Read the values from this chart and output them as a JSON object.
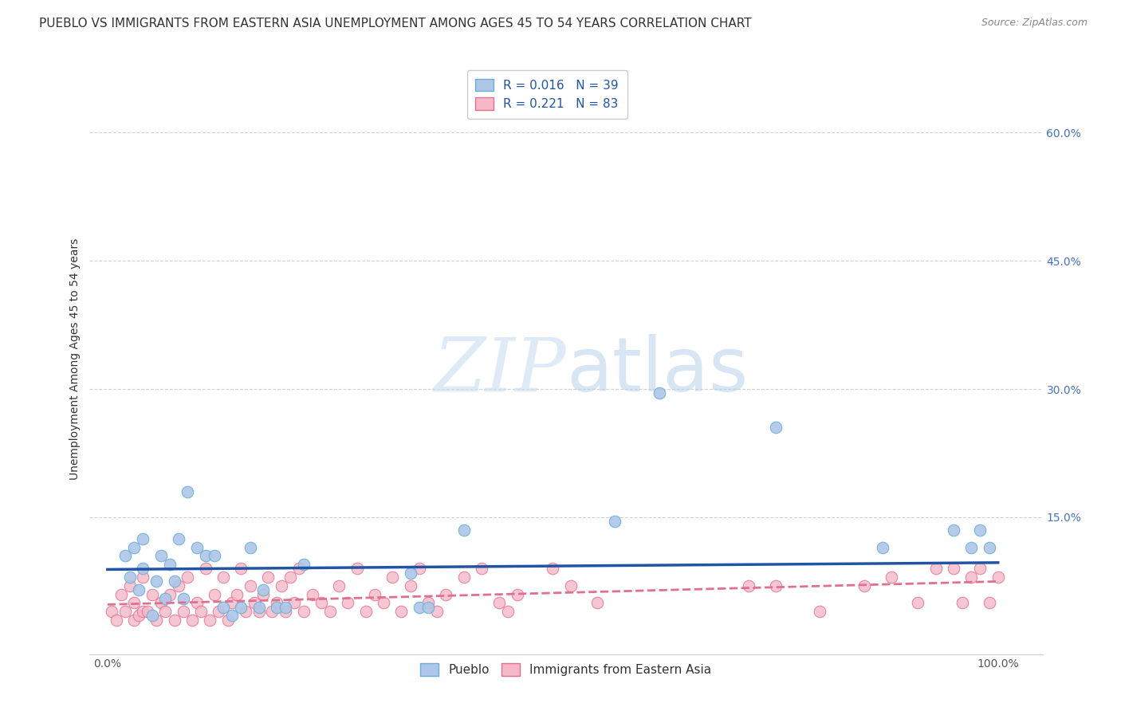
{
  "title": "PUEBLO VS IMMIGRANTS FROM EASTERN ASIA UNEMPLOYMENT AMONG AGES 45 TO 54 YEARS CORRELATION CHART",
  "source": "Source: ZipAtlas.com",
  "ylabel": "Unemployment Among Ages 45 to 54 years",
  "xlim": [
    -0.02,
    1.05
  ],
  "ylim": [
    -0.01,
    0.68
  ],
  "xticks": [
    0.0,
    1.0
  ],
  "xticklabels": [
    "0.0%",
    "100.0%"
  ],
  "ytick_positions": [
    0.15,
    0.3,
    0.45,
    0.6
  ],
  "yticklabels": [
    "15.0%",
    "30.0%",
    "45.0%",
    "60.0%"
  ],
  "pueblo_R": "0.016",
  "pueblo_N": "39",
  "eastern_asia_R": "0.221",
  "eastern_asia_N": "83",
  "pueblo_color": "#aec6e8",
  "pueblo_edge_color": "#6baed6",
  "eastern_asia_color": "#f4b8c8",
  "eastern_asia_edge_color": "#e07090",
  "pueblo_line_color": "#2155a3",
  "eastern_asia_line_color": "#e07090",
  "legend_text_color": "#2155a3",
  "background_color": "#ffffff",
  "grid_color": "#cccccc",
  "title_fontsize": 11,
  "axis_label_fontsize": 10,
  "tick_fontsize": 10,
  "legend_fontsize": 11,
  "pueblo_x": [
    0.02,
    0.025,
    0.03,
    0.035,
    0.04,
    0.04,
    0.05,
    0.055,
    0.06,
    0.065,
    0.07,
    0.075,
    0.08,
    0.085,
    0.09,
    0.1,
    0.11,
    0.12,
    0.13,
    0.14,
    0.15,
    0.16,
    0.17,
    0.175,
    0.19,
    0.2,
    0.22,
    0.34,
    0.35,
    0.36,
    0.4,
    0.57,
    0.62,
    0.75,
    0.87,
    0.95,
    0.97,
    0.98,
    0.99
  ],
  "pueblo_y": [
    0.105,
    0.08,
    0.115,
    0.065,
    0.09,
    0.125,
    0.035,
    0.075,
    0.105,
    0.055,
    0.095,
    0.075,
    0.125,
    0.055,
    0.18,
    0.115,
    0.105,
    0.105,
    0.045,
    0.035,
    0.045,
    0.115,
    0.045,
    0.065,
    0.045,
    0.045,
    0.095,
    0.085,
    0.045,
    0.045,
    0.135,
    0.145,
    0.295,
    0.255,
    0.115,
    0.135,
    0.115,
    0.135,
    0.115
  ],
  "eastern_asia_x": [
    0.005,
    0.01,
    0.015,
    0.02,
    0.025,
    0.03,
    0.03,
    0.035,
    0.04,
    0.04,
    0.045,
    0.05,
    0.055,
    0.06,
    0.065,
    0.07,
    0.075,
    0.08,
    0.085,
    0.09,
    0.095,
    0.1,
    0.105,
    0.11,
    0.115,
    0.12,
    0.125,
    0.13,
    0.135,
    0.14,
    0.145,
    0.15,
    0.155,
    0.16,
    0.165,
    0.17,
    0.175,
    0.18,
    0.185,
    0.19,
    0.195,
    0.2,
    0.205,
    0.21,
    0.215,
    0.22,
    0.23,
    0.24,
    0.25,
    0.26,
    0.27,
    0.28,
    0.29,
    0.3,
    0.31,
    0.32,
    0.33,
    0.34,
    0.35,
    0.36,
    0.37,
    0.38,
    0.4,
    0.42,
    0.44,
    0.45,
    0.46,
    0.5,
    0.52,
    0.55,
    0.72,
    0.75,
    0.8,
    0.85,
    0.88,
    0.91,
    0.93,
    0.95,
    0.96,
    0.97,
    0.98,
    0.99,
    1.0
  ],
  "eastern_asia_y": [
    0.04,
    0.03,
    0.06,
    0.04,
    0.07,
    0.03,
    0.05,
    0.035,
    0.04,
    0.08,
    0.04,
    0.06,
    0.03,
    0.05,
    0.04,
    0.06,
    0.03,
    0.07,
    0.04,
    0.08,
    0.03,
    0.05,
    0.04,
    0.09,
    0.03,
    0.06,
    0.04,
    0.08,
    0.03,
    0.05,
    0.06,
    0.09,
    0.04,
    0.07,
    0.05,
    0.04,
    0.06,
    0.08,
    0.04,
    0.05,
    0.07,
    0.04,
    0.08,
    0.05,
    0.09,
    0.04,
    0.06,
    0.05,
    0.04,
    0.07,
    0.05,
    0.09,
    0.04,
    0.06,
    0.05,
    0.08,
    0.04,
    0.07,
    0.09,
    0.05,
    0.04,
    0.06,
    0.08,
    0.09,
    0.05,
    0.04,
    0.06,
    0.09,
    0.07,
    0.05,
    0.07,
    0.07,
    0.04,
    0.07,
    0.08,
    0.05,
    0.09,
    0.09,
    0.05,
    0.08,
    0.09,
    0.05,
    0.08
  ],
  "pueblo_trend_x": [
    0.0,
    1.0
  ],
  "pueblo_trend_y": [
    0.089,
    0.097
  ],
  "eastern_asia_trend_x": [
    0.0,
    1.0
  ],
  "eastern_asia_trend_y": [
    0.048,
    0.075
  ]
}
